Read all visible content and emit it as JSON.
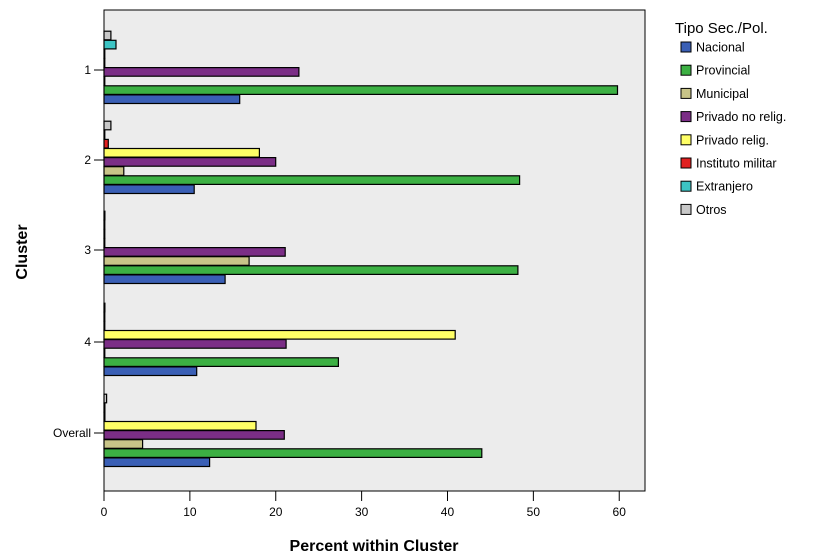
{
  "chart_data": {
    "type": "bar",
    "orientation": "horizontal",
    "categories": [
      "1",
      "2",
      "3",
      "4",
      "Overall"
    ],
    "xlabel": "Percent within Cluster",
    "ylabel": "Cluster",
    "xlim": [
      0,
      63
    ],
    "xticks": [
      0,
      10,
      20,
      30,
      40,
      50,
      60
    ],
    "legend": {
      "title": "Tipo Sec./Pol.",
      "position": "right"
    },
    "series": [
      {
        "name": "Nacional",
        "color": "#3a5fb5",
        "values": [
          15.8,
          10.5,
          14.1,
          10.8,
          12.3
        ]
      },
      {
        "name": "Provincial",
        "color": "#3cb043",
        "values": [
          59.8,
          48.4,
          48.2,
          27.3,
          44.0
        ]
      },
      {
        "name": "Municipal",
        "color": "#c8c488",
        "values": [
          0.0,
          2.3,
          16.9,
          0.0,
          4.5
        ]
      },
      {
        "name": "Privado no relig.",
        "color": "#7b2e86",
        "values": [
          22.7,
          20.0,
          21.1,
          21.2,
          21.0
        ]
      },
      {
        "name": "Privado relig.",
        "color": "#ffff66",
        "values": [
          0.0,
          18.1,
          0.0,
          40.9,
          17.7
        ]
      },
      {
        "name": "Instituto militar",
        "color": "#e02020",
        "values": [
          0.0,
          0.5,
          0.0,
          0.0,
          0.1
        ]
      },
      {
        "name": "Extranjero",
        "color": "#3cc4c4",
        "values": [
          1.4,
          0.0,
          0.0,
          0.0,
          0.1
        ]
      },
      {
        "name": "Otros",
        "color": "#c8c8c8",
        "values": [
          0.8,
          0.8,
          0.1,
          0.1,
          0.3
        ]
      }
    ]
  }
}
